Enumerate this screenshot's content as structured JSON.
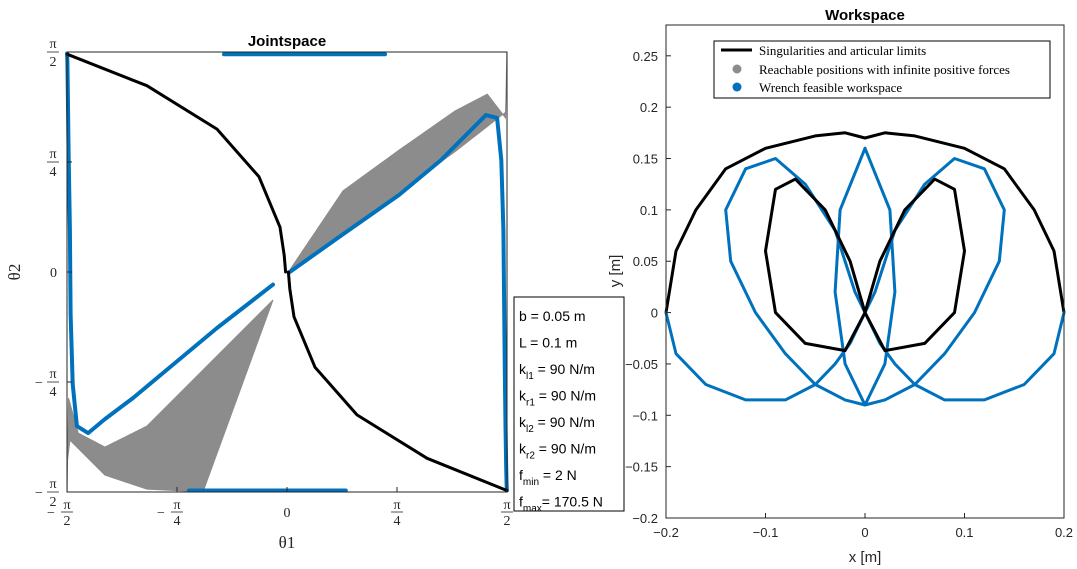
{
  "colors": {
    "black": "#000000",
    "gray": "#8c8c8c",
    "blue": "#0072bd"
  },
  "chart_data": [
    {
      "type": "line",
      "title": "Jointspace",
      "xlabel": "θ1",
      "ylabel": "θ2",
      "xlim": [
        -1.5708,
        1.5708
      ],
      "ylim": [
        -1.5708,
        1.5708
      ],
      "xticks": [
        {
          "value": -1.5708,
          "label": "π/2",
          "sign": "−"
        },
        {
          "value": -0.7854,
          "label": "π/4",
          "sign": "−"
        },
        {
          "value": 0,
          "label": "0",
          "sign": ""
        },
        {
          "value": 0.7854,
          "label": "π/4",
          "sign": ""
        },
        {
          "value": 1.5708,
          "label": "π/2",
          "sign": ""
        }
      ],
      "yticks": [
        {
          "value": -1.5708,
          "label": "π/2",
          "sign": "−"
        },
        {
          "value": -0.7854,
          "label": "π/4",
          "sign": "−"
        },
        {
          "value": 0,
          "label": "0",
          "sign": ""
        },
        {
          "value": 0.7854,
          "label": "π/4",
          "sign": ""
        },
        {
          "value": 1.5708,
          "label": "π/2",
          "sign": ""
        }
      ],
      "series": [
        {
          "role": "gray",
          "x": [
            0.01,
            0.4,
            0.8,
            1.2,
            1.56,
            1.568,
            1.57,
            1.56,
            1.43,
            1.2,
            0.8,
            0.4,
            0.01
          ],
          "y": [
            0.0,
            0.28,
            0.57,
            0.86,
            1.14,
            1.4,
            1.57,
            1.1,
            1.27,
            1.15,
            0.87,
            0.58,
            0.0
          ]
        },
        {
          "role": "gray",
          "x": [
            -1.57,
            -1.568,
            -1.55,
            -1.3,
            -1.0,
            -0.6,
            -0.1,
            -0.6,
            -1.0,
            -1.3,
            -1.49,
            -1.56,
            -1.57
          ],
          "y": [
            -1.57,
            -1.35,
            -1.2,
            -1.45,
            -1.55,
            -1.57,
            -0.2,
            -0.7,
            -1.1,
            -1.25,
            -1.15,
            -0.9,
            -1.57
          ]
        },
        {
          "role": "blue",
          "x": [
            0.02,
            0.4,
            0.8,
            1.1,
            1.3,
            1.42,
            1.5,
            1.53,
            1.545,
            1.55,
            1.555,
            1.56,
            1.565,
            1.568,
            1.57
          ],
          "y": [
            0.0,
            0.27,
            0.55,
            0.8,
            1.0,
            1.12,
            1.1,
            0.8,
            0.3,
            -0.2,
            -0.7,
            -1.1,
            -1.4,
            -1.52,
            -1.56
          ]
        },
        {
          "role": "blue",
          "x": [
            -0.1,
            -0.5,
            -0.8,
            -1.1,
            -1.3,
            -1.42,
            -1.5,
            -1.53,
            -1.545,
            -1.55,
            -1.56,
            -1.565,
            -1.568,
            -1.57
          ],
          "y": [
            -0.09,
            -0.4,
            -0.65,
            -0.9,
            -1.05,
            -1.15,
            -1.1,
            -0.8,
            -0.3,
            0.3,
            0.9,
            1.3,
            1.5,
            1.56
          ]
        },
        {
          "role": "blue",
          "x": [
            -0.45,
            0.7
          ],
          "y": [
            1.555,
            1.555
          ]
        },
        {
          "role": "blue",
          "x": [
            -0.7,
            0.42
          ],
          "y": [
            -1.56,
            -1.56
          ]
        },
        {
          "role": "black",
          "x": [
            -1.57,
            -1.0,
            -0.5,
            -0.2,
            -0.05,
            -0.02,
            -0.01
          ],
          "y": [
            1.555,
            1.33,
            1.02,
            0.68,
            0.32,
            0.12,
            0.0
          ]
        },
        {
          "role": "black",
          "x": [
            0.01,
            0.02,
            0.05,
            0.2,
            0.5,
            1.0,
            1.57
          ],
          "y": [
            0.0,
            -0.12,
            -0.32,
            -0.68,
            -1.02,
            -1.33,
            -1.56
          ]
        }
      ]
    },
    {
      "type": "line",
      "title": "Workspace",
      "xlabel": "x [m]",
      "ylabel": "y [m]",
      "xlim": [
        -0.2,
        0.2
      ],
      "ylim": [
        -0.2,
        0.28
      ],
      "xticks": [
        -0.2,
        -0.1,
        0,
        0.1,
        0.2
      ],
      "xtick_labels": [
        "−0.2",
        "−0.1",
        "0",
        "0.1",
        "0.2"
      ],
      "yticks": [
        -0.2,
        -0.15,
        -0.1,
        -0.05,
        0,
        0.05,
        0.1,
        0.15,
        0.2,
        0.25
      ],
      "ytick_labels": [
        "−0.2",
        "−0.15",
        "−0.1",
        "−0.05",
        "0",
        "0.05",
        "0.1",
        "0.15",
        "0.2",
        "0.25"
      ],
      "legend": [
        "Singularities and articular limits",
        "Reachable positions with infinite positive forces",
        "Wrench feasible workspace"
      ],
      "legend_position": "top",
      "series": [
        {
          "role": "black",
          "x": [
            -0.2,
            -0.19,
            -0.17,
            -0.14,
            -0.1,
            -0.05,
            -0.02,
            0,
            0.02,
            0.05,
            0.1,
            0.14,
            0.17,
            0.19,
            0.2
          ],
          "y": [
            0,
            0.06,
            0.1,
            0.14,
            0.16,
            0.172,
            0.175,
            0.17,
            0.175,
            0.172,
            0.16,
            0.14,
            0.1,
            0.06,
            0
          ]
        },
        {
          "role": "blue",
          "x": [
            -0.2,
            -0.19,
            -0.16,
            -0.12,
            -0.08,
            -0.05,
            -0.03,
            -0.015,
            -0.005,
            0,
            0.005,
            0.015,
            0.03,
            0.05,
            0.08,
            0.12,
            0.16,
            0.19,
            0.2
          ],
          "y": [
            0,
            -0.04,
            -0.07,
            -0.085,
            -0.085,
            -0.07,
            -0.05,
            -0.03,
            -0.01,
            0,
            -0.01,
            -0.03,
            -0.05,
            -0.07,
            -0.085,
            -0.085,
            -0.07,
            -0.04,
            0
          ]
        },
        {
          "role": "blue",
          "x": [
            0,
            -0.01,
            -0.03,
            -0.06,
            -0.09,
            -0.12,
            -0.14,
            -0.135,
            -0.11,
            -0.08,
            -0.05,
            -0.02,
            0.0,
            0.02,
            0.03,
            0.025,
            0.0
          ],
          "y": [
            0,
            0.02,
            0.08,
            0.125,
            0.15,
            0.14,
            0.1,
            0.05,
            0.0,
            -0.04,
            -0.07,
            -0.085,
            -0.09,
            -0.05,
            0.02,
            0.1,
            0.16
          ]
        },
        {
          "role": "blue",
          "x": [
            0,
            0.01,
            0.03,
            0.06,
            0.09,
            0.12,
            0.14,
            0.135,
            0.11,
            0.08,
            0.05,
            0.02,
            0.0,
            -0.02,
            -0.03,
            -0.025,
            0.0
          ],
          "y": [
            0,
            0.02,
            0.08,
            0.125,
            0.15,
            0.14,
            0.1,
            0.05,
            0.0,
            -0.04,
            -0.07,
            -0.085,
            -0.09,
            -0.05,
            0.02,
            0.1,
            0.16
          ]
        },
        {
          "role": "black",
          "x": [
            0,
            -0.015,
            -0.04,
            -0.07,
            -0.09,
            -0.1,
            -0.09,
            -0.06,
            -0.02,
            0.0
          ],
          "y": [
            0,
            0.05,
            0.1,
            0.13,
            0.12,
            0.06,
            0.0,
            -0.03,
            -0.037,
            0.0
          ]
        },
        {
          "role": "black",
          "x": [
            0,
            0.015,
            0.04,
            0.07,
            0.09,
            0.1,
            0.09,
            0.06,
            0.02,
            0.0
          ],
          "y": [
            0,
            0.05,
            0.1,
            0.13,
            0.12,
            0.06,
            0.0,
            -0.03,
            -0.037,
            0.0
          ]
        }
      ]
    }
  ],
  "info_box": [
    {
      "sym": "b",
      "sub": "",
      "text": "   = 0.05 m"
    },
    {
      "sym": "L",
      "sub": "",
      "text": "   = 0.1 m"
    },
    {
      "sym": "k",
      "sub": "l1",
      "text": " = 90 N/m"
    },
    {
      "sym": "k",
      "sub": "r1",
      "text": " = 90 N/m"
    },
    {
      "sym": "k",
      "sub": "l2",
      "text": " = 90 N/m"
    },
    {
      "sym": "k",
      "sub": "r2",
      "text": " = 90 N/m"
    },
    {
      "sym": "f",
      "sub": "min",
      "text": " = 2 N"
    },
    {
      "sym": "f",
      "sub": "max",
      "text": "= 170.5 N"
    }
  ]
}
